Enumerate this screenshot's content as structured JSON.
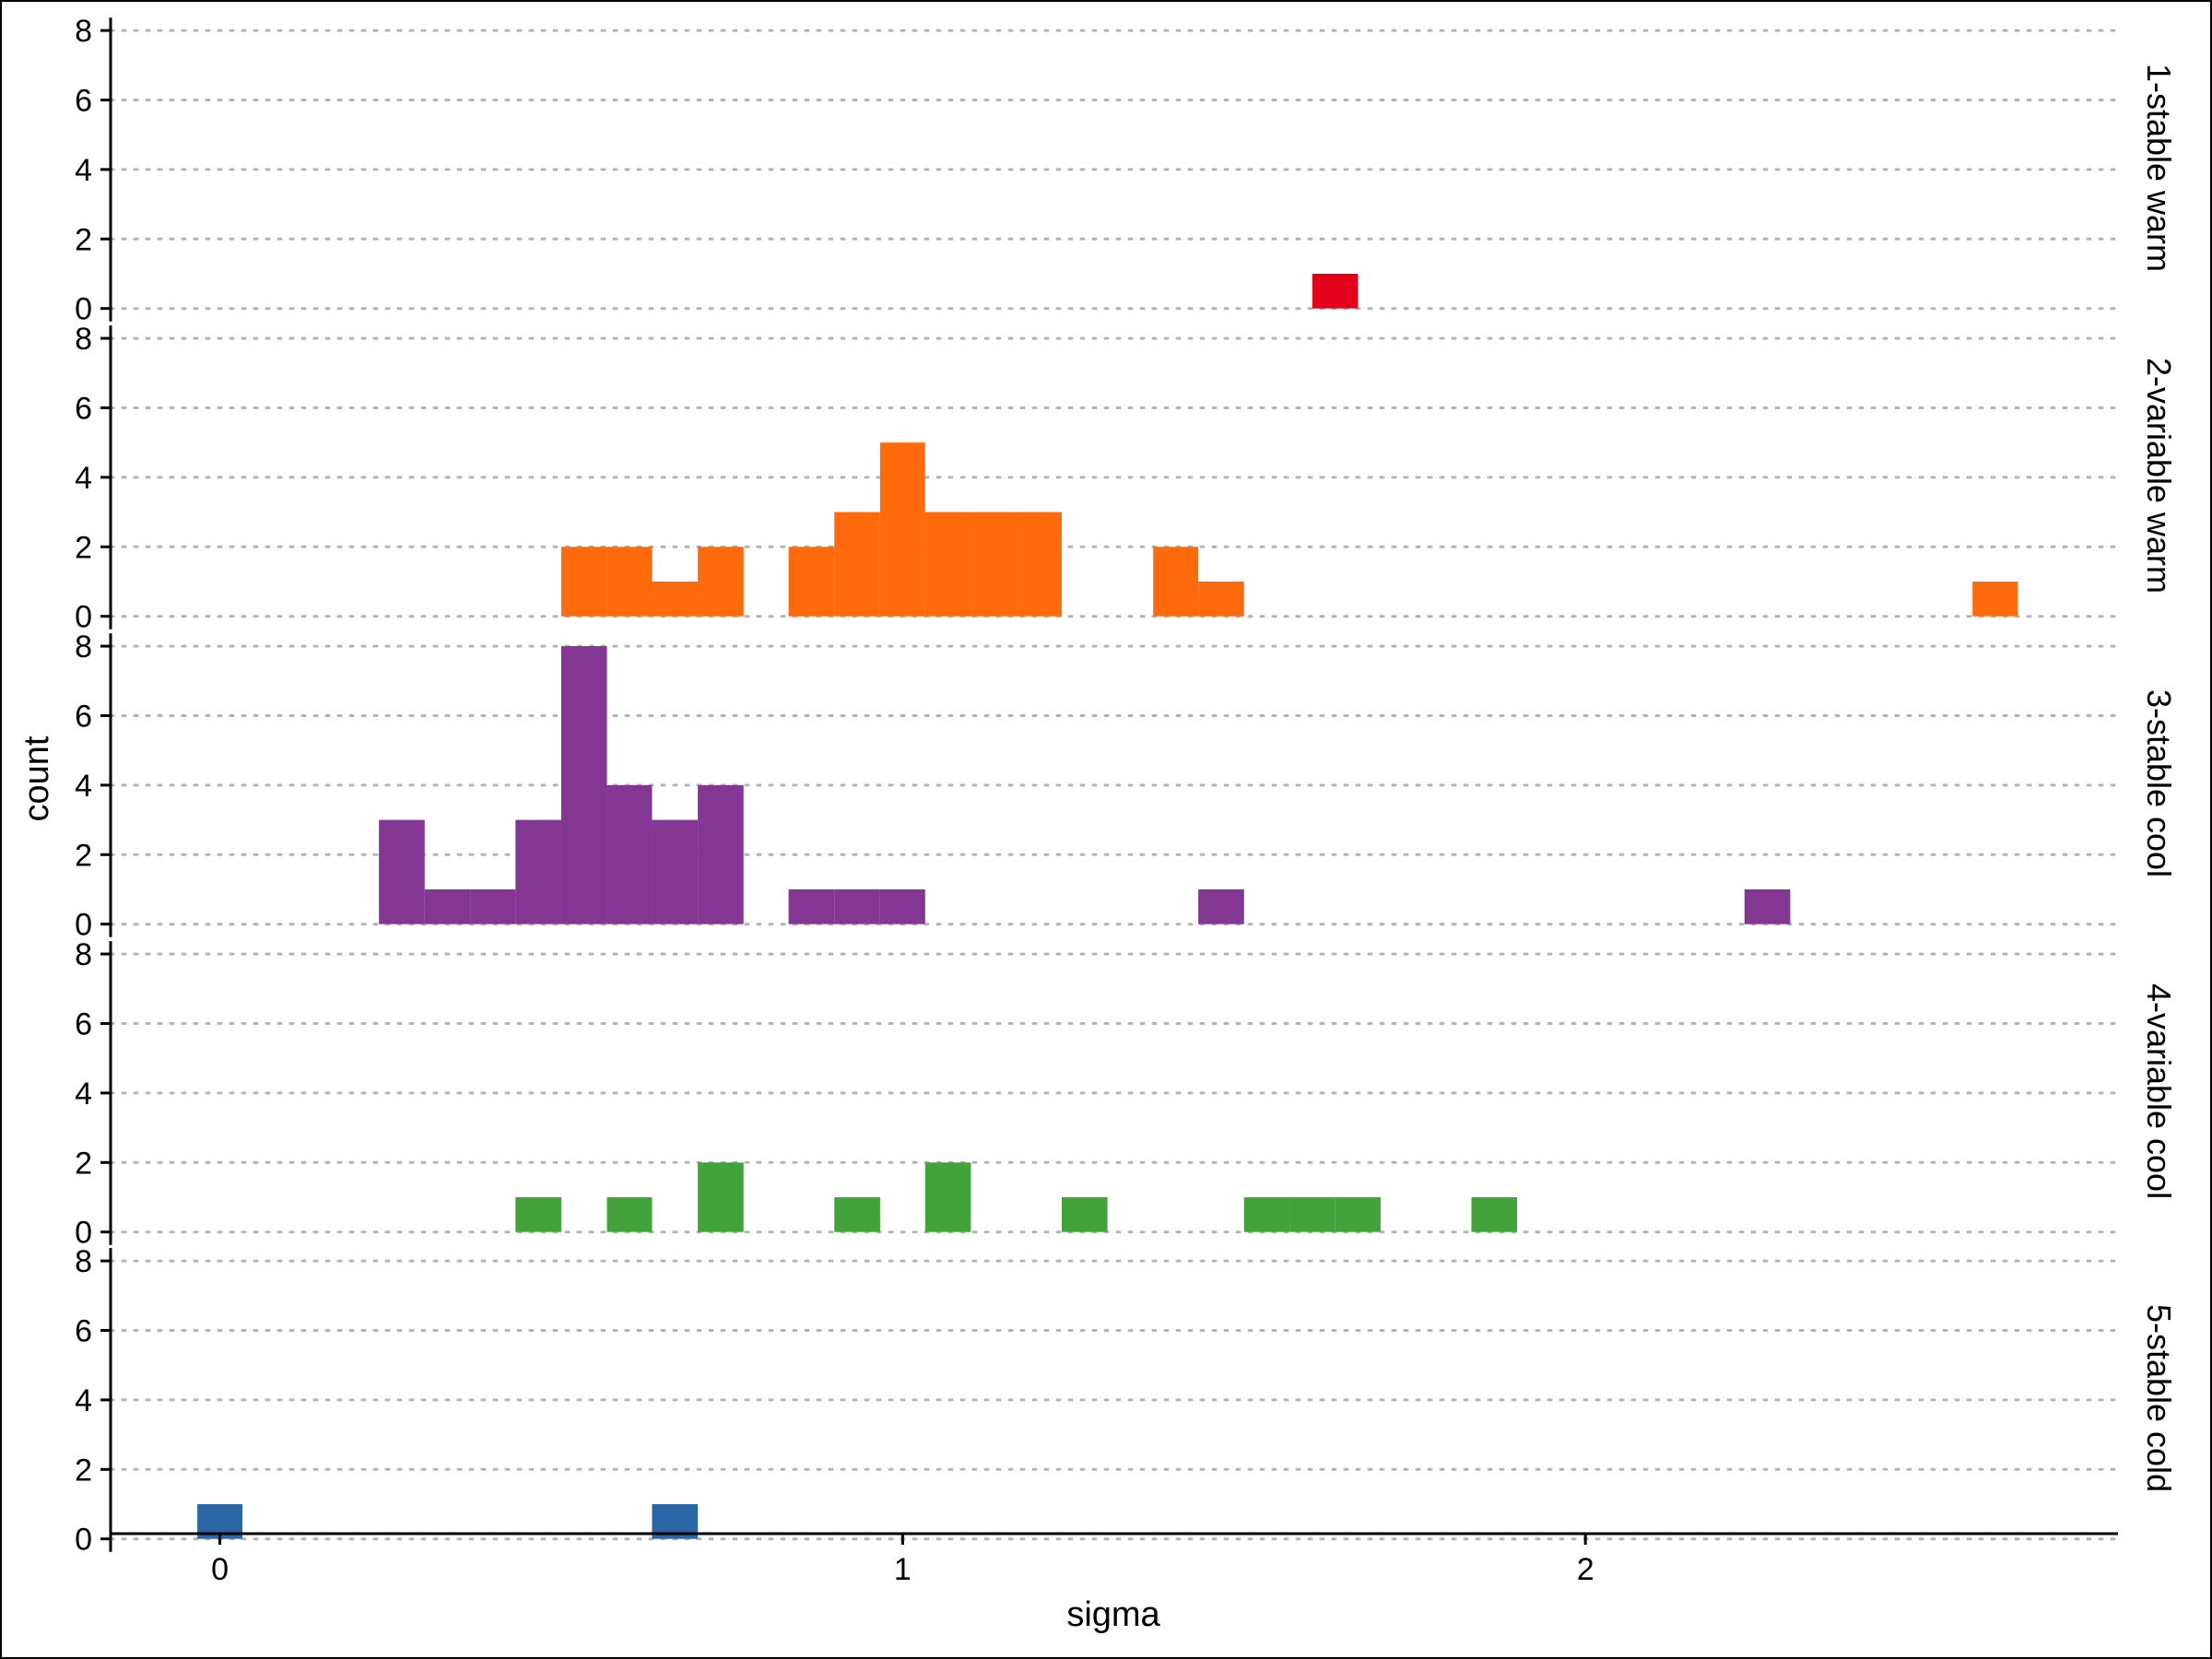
{
  "chart_data": {
    "type": "bar",
    "subtype": "faceted-histogram",
    "xlabel": "sigma",
    "ylabel": "count",
    "xlim": [
      -0.16,
      2.78
    ],
    "ylim": [
      -0.3,
      8.4
    ],
    "x_ticks": [
      0,
      1,
      2
    ],
    "y_ticks": [
      0,
      2,
      4,
      6,
      8
    ],
    "bin_width": 0.0667,
    "grid": "horizontal-dotted",
    "facets": [
      {
        "label": "1-stable warm",
        "color": "#E3001B",
        "bins": [
          {
            "x0": 1.6,
            "x1": 1.667,
            "count": 1
          }
        ]
      },
      {
        "label": "2-variable warm",
        "color": "#FF6A0D",
        "bins": [
          {
            "x0": 0.5,
            "x1": 0.567,
            "count": 2
          },
          {
            "x0": 0.567,
            "x1": 0.633,
            "count": 2
          },
          {
            "x0": 0.633,
            "x1": 0.7,
            "count": 1
          },
          {
            "x0": 0.7,
            "x1": 0.767,
            "count": 2
          },
          {
            "x0": 0.833,
            "x1": 0.9,
            "count": 2
          },
          {
            "x0": 0.9,
            "x1": 0.967,
            "count": 3
          },
          {
            "x0": 0.967,
            "x1": 1.033,
            "count": 5
          },
          {
            "x0": 1.033,
            "x1": 1.1,
            "count": 3
          },
          {
            "x0": 1.1,
            "x1": 1.167,
            "count": 3
          },
          {
            "x0": 1.167,
            "x1": 1.233,
            "count": 3
          },
          {
            "x0": 1.367,
            "x1": 1.433,
            "count": 2
          },
          {
            "x0": 1.433,
            "x1": 1.5,
            "count": 1
          },
          {
            "x0": 2.567,
            "x1": 2.633,
            "count": 1
          }
        ]
      },
      {
        "label": "3-stable cool",
        "color": "#843792",
        "bins": [
          {
            "x0": 0.233,
            "x1": 0.3,
            "count": 3
          },
          {
            "x0": 0.3,
            "x1": 0.367,
            "count": 1
          },
          {
            "x0": 0.367,
            "x1": 0.433,
            "count": 1
          },
          {
            "x0": 0.433,
            "x1": 0.5,
            "count": 3
          },
          {
            "x0": 0.5,
            "x1": 0.567,
            "count": 8
          },
          {
            "x0": 0.567,
            "x1": 0.633,
            "count": 4
          },
          {
            "x0": 0.633,
            "x1": 0.7,
            "count": 3
          },
          {
            "x0": 0.7,
            "x1": 0.767,
            "count": 4
          },
          {
            "x0": 0.833,
            "x1": 0.9,
            "count": 1
          },
          {
            "x0": 0.9,
            "x1": 0.967,
            "count": 1
          },
          {
            "x0": 0.967,
            "x1": 1.033,
            "count": 1
          },
          {
            "x0": 1.433,
            "x1": 1.5,
            "count": 1
          },
          {
            "x0": 2.233,
            "x1": 2.3,
            "count": 1
          }
        ]
      },
      {
        "label": "4-variable cool",
        "color": "#41A33A",
        "bins": [
          {
            "x0": 0.433,
            "x1": 0.5,
            "count": 1
          },
          {
            "x0": 0.567,
            "x1": 0.633,
            "count": 1
          },
          {
            "x0": 0.7,
            "x1": 0.767,
            "count": 2
          },
          {
            "x0": 0.9,
            "x1": 0.967,
            "count": 1
          },
          {
            "x0": 1.033,
            "x1": 1.1,
            "count": 2
          },
          {
            "x0": 1.233,
            "x1": 1.3,
            "count": 1
          },
          {
            "x0": 1.5,
            "x1": 1.567,
            "count": 1
          },
          {
            "x0": 1.567,
            "x1": 1.633,
            "count": 1
          },
          {
            "x0": 1.633,
            "x1": 1.7,
            "count": 1
          },
          {
            "x0": 1.833,
            "x1": 1.9,
            "count": 1
          }
        ]
      },
      {
        "label": "5-stable cold",
        "color": "#2B67A6",
        "bins": [
          {
            "x0": -0.033,
            "x1": 0.033,
            "count": 1
          },
          {
            "x0": 0.633,
            "x1": 0.7,
            "count": 1
          }
        ]
      }
    ]
  }
}
